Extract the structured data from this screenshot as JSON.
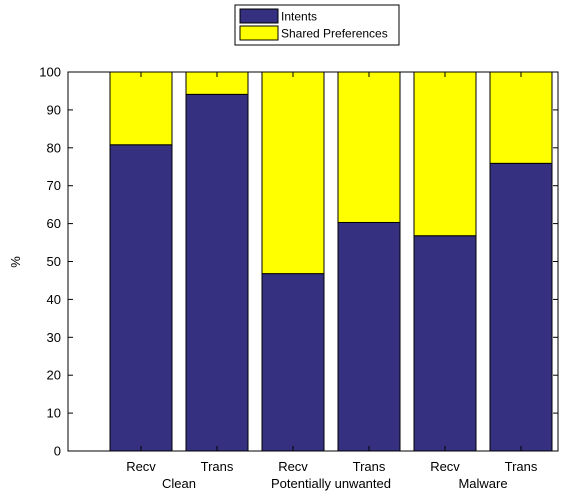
{
  "chart_data": {
    "type": "bar",
    "stacked": true,
    "categories": [
      "Recv",
      "Trans",
      "Recv",
      "Trans",
      "Recv",
      "Trans"
    ],
    "groups": [
      {
        "label": "Clean",
        "categories": [
          0,
          1
        ]
      },
      {
        "label": "Potentially unwanted",
        "categories": [
          2,
          3
        ]
      },
      {
        "label": "Malware",
        "categories": [
          4,
          5
        ]
      }
    ],
    "series": [
      {
        "name": "Intents",
        "color": "#35307f",
        "values": [
          80.8,
          94.1,
          46.8,
          60.3,
          56.8,
          75.9
        ]
      },
      {
        "name": "Shared Preferences",
        "color": "#ffff00",
        "values": [
          19.2,
          5.9,
          53.2,
          39.7,
          43.2,
          24.1
        ]
      }
    ],
    "title": "",
    "xlabel": "",
    "ylabel": "%",
    "ylim": [
      0,
      100
    ],
    "yticks": [
      0,
      10,
      20,
      30,
      40,
      50,
      60,
      70,
      80,
      90,
      100
    ],
    "grid": false,
    "legend": "top-center"
  }
}
